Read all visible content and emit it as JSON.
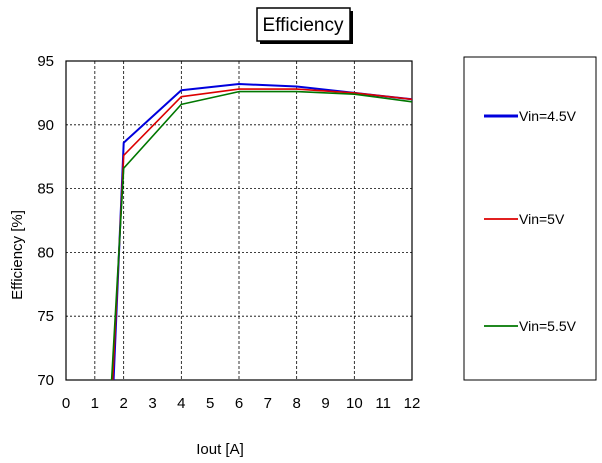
{
  "chart_data": {
    "type": "line",
    "title": "Efficiency",
    "xlabel": "Iout [A]",
    "ylabel": "Efficiency [%]",
    "xlim": [
      0,
      12
    ],
    "ylim": [
      70,
      95
    ],
    "xticks": [
      0,
      1,
      2,
      3,
      4,
      5,
      6,
      7,
      8,
      9,
      10,
      11,
      12
    ],
    "yticks": [
      70,
      75,
      80,
      85,
      90,
      95
    ],
    "grid": true,
    "legend_position": "right",
    "series": [
      {
        "name": "Vin=4.5V",
        "color": "#0000dd",
        "x": [
          1.65,
          2,
          4,
          6,
          8,
          10,
          12
        ],
        "y": [
          70,
          88.6,
          92.7,
          93.2,
          93.0,
          92.5,
          92.0
        ]
      },
      {
        "name": "Vin=5V",
        "color": "#dd0000",
        "x": [
          1.62,
          2,
          4,
          6,
          8,
          10,
          12
        ],
        "y": [
          70,
          87.6,
          92.2,
          92.8,
          92.8,
          92.5,
          92.0
        ]
      },
      {
        "name": "Vin=5.5V",
        "color": "#007700",
        "x": [
          1.58,
          2,
          4,
          6,
          8,
          10,
          12
        ],
        "y": [
          70,
          86.6,
          91.6,
          92.6,
          92.6,
          92.4,
          91.8
        ]
      }
    ]
  }
}
